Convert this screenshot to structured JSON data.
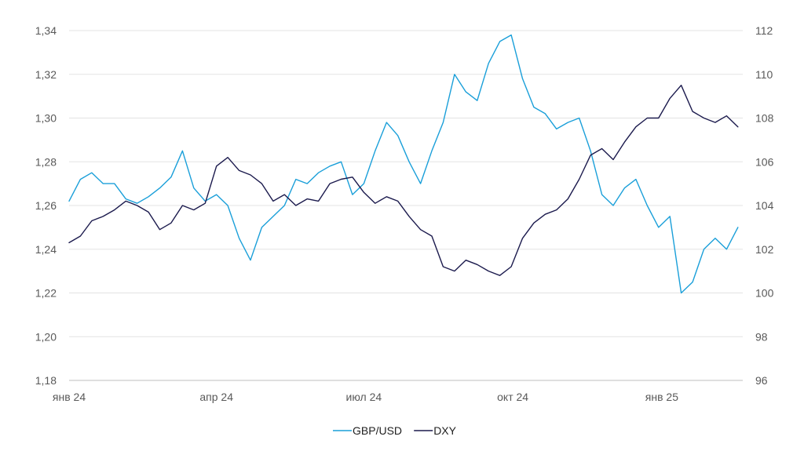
{
  "chart_data": {
    "type": "line",
    "title": "",
    "x_axis": {
      "ticks": [
        "янв 24",
        "апр 24",
        "июл 24",
        "окт 24",
        "янв 25"
      ]
    },
    "y_axis_left": {
      "range": [
        1.18,
        1.34
      ],
      "ticks": [
        "1,18",
        "1,20",
        "1,22",
        "1,24",
        "1,26",
        "1,28",
        "1,30",
        "1,32",
        "1,34"
      ]
    },
    "y_axis_right": {
      "range": [
        96,
        112
      ],
      "ticks": [
        "96",
        "98",
        "100",
        "102",
        "104",
        "106",
        "108",
        "110",
        "112"
      ]
    },
    "grid": true,
    "legend_position": "bottom-center",
    "series": [
      {
        "name": "GBP/USD",
        "axis": "left",
        "color": "#1a9fd9",
        "x": [
          "2024-01-01",
          "2024-01-08",
          "2024-01-15",
          "2024-01-22",
          "2024-01-29",
          "2024-02-05",
          "2024-02-12",
          "2024-02-19",
          "2024-02-26",
          "2024-03-04",
          "2024-03-11",
          "2024-03-18",
          "2024-03-25",
          "2024-04-01",
          "2024-04-08",
          "2024-04-15",
          "2024-04-22",
          "2024-04-29",
          "2024-05-06",
          "2024-05-13",
          "2024-05-20",
          "2024-05-27",
          "2024-06-03",
          "2024-06-10",
          "2024-06-17",
          "2024-06-24",
          "2024-07-01",
          "2024-07-08",
          "2024-07-15",
          "2024-07-22",
          "2024-07-29",
          "2024-08-05",
          "2024-08-12",
          "2024-08-19",
          "2024-08-26",
          "2024-09-02",
          "2024-09-09",
          "2024-09-16",
          "2024-09-23",
          "2024-09-30",
          "2024-10-07",
          "2024-10-14",
          "2024-10-21",
          "2024-10-28",
          "2024-11-04",
          "2024-11-11",
          "2024-11-18",
          "2024-11-25",
          "2024-12-02",
          "2024-12-09",
          "2024-12-16",
          "2024-12-23",
          "2024-12-30",
          "2025-01-06",
          "2025-01-13",
          "2025-01-20",
          "2025-01-27",
          "2025-02-03",
          "2025-02-10",
          "2025-02-17"
        ],
        "values": [
          1.262,
          1.272,
          1.275,
          1.27,
          1.27,
          1.263,
          1.261,
          1.264,
          1.268,
          1.273,
          1.285,
          1.268,
          1.262,
          1.265,
          1.26,
          1.245,
          1.235,
          1.25,
          1.255,
          1.26,
          1.272,
          1.27,
          1.275,
          1.278,
          1.28,
          1.265,
          1.27,
          1.285,
          1.298,
          1.292,
          1.28,
          1.27,
          1.285,
          1.298,
          1.32,
          1.312,
          1.308,
          1.325,
          1.335,
          1.338,
          1.318,
          1.305,
          1.302,
          1.295,
          1.298,
          1.3,
          1.285,
          1.265,
          1.26,
          1.268,
          1.272,
          1.26,
          1.25,
          1.255,
          1.22,
          1.225,
          1.24,
          1.245,
          1.24,
          1.25
        ]
      },
      {
        "name": "DXY",
        "axis": "right",
        "color": "#1b1a4d",
        "x": [
          "2024-01-01",
          "2024-01-08",
          "2024-01-15",
          "2024-01-22",
          "2024-01-29",
          "2024-02-05",
          "2024-02-12",
          "2024-02-19",
          "2024-02-26",
          "2024-03-04",
          "2024-03-11",
          "2024-03-18",
          "2024-03-25",
          "2024-04-01",
          "2024-04-08",
          "2024-04-15",
          "2024-04-22",
          "2024-04-29",
          "2024-05-06",
          "2024-05-13",
          "2024-05-20",
          "2024-05-27",
          "2024-06-03",
          "2024-06-10",
          "2024-06-17",
          "2024-06-24",
          "2024-07-01",
          "2024-07-08",
          "2024-07-15",
          "2024-07-22",
          "2024-07-29",
          "2024-08-05",
          "2024-08-12",
          "2024-08-19",
          "2024-08-26",
          "2024-09-02",
          "2024-09-09",
          "2024-09-16",
          "2024-09-23",
          "2024-09-30",
          "2024-10-07",
          "2024-10-14",
          "2024-10-21",
          "2024-10-28",
          "2024-11-04",
          "2024-11-11",
          "2024-11-18",
          "2024-11-25",
          "2024-12-02",
          "2024-12-09",
          "2024-12-16",
          "2024-12-23",
          "2024-12-30",
          "2025-01-06",
          "2025-01-13",
          "2025-01-20",
          "2025-01-27",
          "2025-02-03",
          "2025-02-10",
          "2025-02-17"
        ],
        "values": [
          102.3,
          102.6,
          103.3,
          103.5,
          103.8,
          104.2,
          104.0,
          103.7,
          102.9,
          103.2,
          104.0,
          103.8,
          104.1,
          105.8,
          106.2,
          105.6,
          105.4,
          105.0,
          104.2,
          104.5,
          104.0,
          104.3,
          104.2,
          105.0,
          105.2,
          105.3,
          104.6,
          104.1,
          104.4,
          104.2,
          103.5,
          102.9,
          102.6,
          101.2,
          101.0,
          101.5,
          101.3,
          101.0,
          100.8,
          101.2,
          102.5,
          103.2,
          103.6,
          103.8,
          104.3,
          105.2,
          106.3,
          106.6,
          106.1,
          106.9,
          107.6,
          108.0,
          108.0,
          108.9,
          109.5,
          108.3,
          108.0,
          107.8,
          108.1,
          107.6
        ]
      }
    ]
  }
}
